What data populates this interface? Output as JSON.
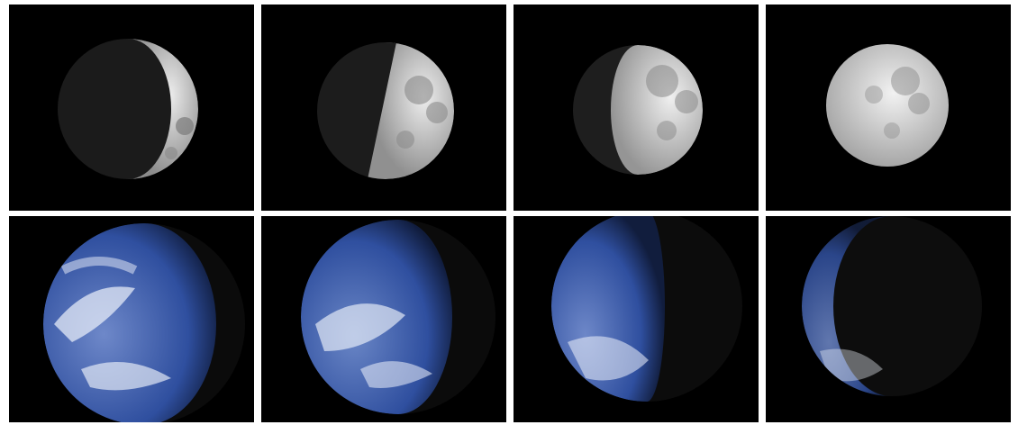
{
  "colors": {
    "background": "#ffffff",
    "space": "#000000",
    "moon_light": "#e6e6e6",
    "moon_mid": "#9a9a9a",
    "moon_shadow": "#1a1a1a",
    "earth_ocean": "#2f4f9f",
    "earth_cloud": "#eef2fb",
    "earth_night": "#0b0b0b"
  },
  "moon_phases": [
    {
      "name": "waxing-crescent",
      "illumination": 0.25
    },
    {
      "name": "first-quarter",
      "illumination": 0.5
    },
    {
      "name": "waxing-gibbous",
      "illumination": 0.7
    },
    {
      "name": "full-moon",
      "illumination": 1.0
    }
  ],
  "earth_phases": [
    {
      "name": "earth-gibbous",
      "illumination": 0.6
    },
    {
      "name": "earth-half",
      "illumination": 0.45
    },
    {
      "name": "earth-crescent",
      "illumination": 0.3
    },
    {
      "name": "earth-thin",
      "illumination": 0.1
    }
  ]
}
